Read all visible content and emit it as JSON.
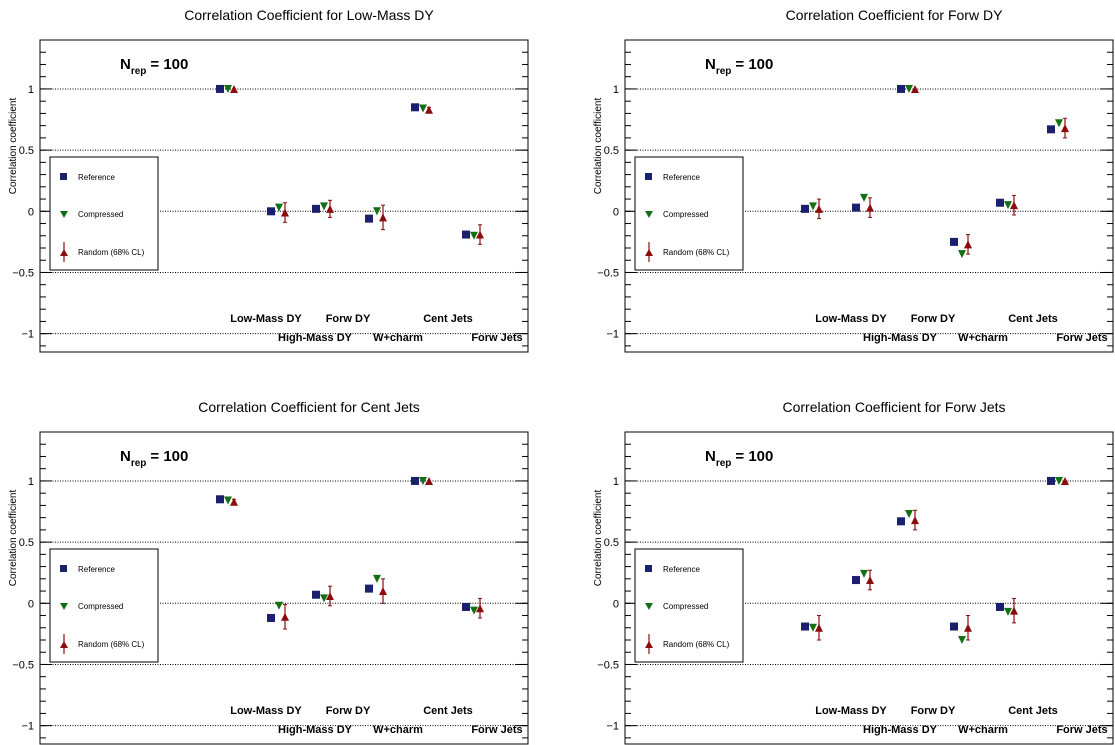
{
  "chart_data": [
    {
      "type": "scatter",
      "title": "Correlation Coefficient for Low-Mass DY",
      "ylabel": "Correlation coefficient",
      "annotation_main": "N",
      "annotation_sub": "rep",
      "annotation_value": "= 100",
      "categories": [
        "Low-Mass DY",
        "High-Mass DY",
        "Forw DY",
        "W+charm",
        "Cent Jets",
        "Forw Jets"
      ],
      "ylim": [
        -1.15,
        1.4
      ],
      "yticks": [
        -1,
        -0.5,
        0,
        0.5,
        1
      ],
      "ytick_labels": [
        "−1",
        "−0.5",
        "0",
        "0.5",
        "1"
      ],
      "legend": [
        "Reference",
        "Compressed",
        "Random (68% CL)"
      ],
      "series": [
        {
          "name": "Reference",
          "values": [
            1.0,
            0.0,
            0.02,
            -0.06,
            0.85,
            -0.19
          ]
        },
        {
          "name": "Compressed",
          "values": [
            1.0,
            0.03,
            0.04,
            0.0,
            0.84,
            -0.2
          ]
        },
        {
          "name": "Random (68% CL)",
          "values": [
            1.0,
            -0.01,
            0.02,
            -0.05,
            0.83,
            -0.19
          ],
          "err_low": [
            0.0,
            0.08,
            0.07,
            0.1,
            0.02,
            0.08
          ],
          "err_high": [
            0.0,
            0.08,
            0.07,
            0.1,
            0.02,
            0.08
          ]
        }
      ]
    },
    {
      "type": "scatter",
      "title": "Correlation Coefficient for Forw DY",
      "ylabel": "Correlation coefficient",
      "annotation_main": "N",
      "annotation_sub": "rep",
      "annotation_value": "= 100",
      "categories": [
        "Low-Mass DY",
        "High-Mass DY",
        "Forw DY",
        "W+charm",
        "Cent Jets",
        "Forw Jets"
      ],
      "ylim": [
        -1.15,
        1.4
      ],
      "yticks": [
        -1,
        -0.5,
        0,
        0.5,
        1
      ],
      "ytick_labels": [
        "−1",
        "−0.5",
        "0",
        "0.5",
        "1"
      ],
      "legend": [
        "Reference",
        "Compressed",
        "Random (68% CL)"
      ],
      "series": [
        {
          "name": "Reference",
          "values": [
            0.02,
            0.03,
            1.0,
            -0.25,
            0.07,
            0.67
          ]
        },
        {
          "name": "Compressed",
          "values": [
            0.04,
            0.11,
            1.0,
            -0.35,
            0.05,
            0.72
          ]
        },
        {
          "name": "Random (68% CL)",
          "values": [
            0.02,
            0.03,
            1.0,
            -0.27,
            0.05,
            0.68
          ],
          "err_low": [
            0.08,
            0.08,
            0.0,
            0.08,
            0.08,
            0.08
          ],
          "err_high": [
            0.08,
            0.08,
            0.0,
            0.08,
            0.08,
            0.08
          ]
        }
      ]
    },
    {
      "type": "scatter",
      "title": "Correlation Coefficient for Cent Jets",
      "ylabel": "Correlation coefficient",
      "annotation_main": "N",
      "annotation_sub": "rep",
      "annotation_value": "= 100",
      "categories": [
        "Low-Mass DY",
        "High-Mass DY",
        "Forw DY",
        "W+charm",
        "Cent Jets",
        "Forw Jets"
      ],
      "ylim": [
        -1.15,
        1.4
      ],
      "yticks": [
        -1,
        -0.5,
        0,
        0.5,
        1
      ],
      "ytick_labels": [
        "−1",
        "−0.5",
        "0",
        "0.5",
        "1"
      ],
      "legend": [
        "Reference",
        "Compressed",
        "Random (68% CL)"
      ],
      "series": [
        {
          "name": "Reference",
          "values": [
            0.85,
            -0.12,
            0.07,
            0.12,
            1.0,
            -0.03
          ]
        },
        {
          "name": "Compressed",
          "values": [
            0.84,
            -0.02,
            0.04,
            0.2,
            1.0,
            -0.06
          ]
        },
        {
          "name": "Random (68% CL)",
          "values": [
            0.83,
            -0.11,
            0.06,
            0.1,
            1.0,
            -0.04
          ],
          "err_low": [
            0.02,
            0.1,
            0.08,
            0.1,
            0.0,
            0.08
          ],
          "err_high": [
            0.02,
            0.1,
            0.08,
            0.1,
            0.0,
            0.08
          ]
        }
      ]
    },
    {
      "type": "scatter",
      "title": "Correlation Coefficient for Forw Jets",
      "ylabel": "Correlation coefficient",
      "annotation_main": "N",
      "annotation_sub": "rep",
      "annotation_value": "= 100",
      "categories": [
        "Low-Mass DY",
        "High-Mass DY",
        "Forw DY",
        "W+charm",
        "Cent Jets",
        "Forw Jets"
      ],
      "ylim": [
        -1.15,
        1.4
      ],
      "yticks": [
        -1,
        -0.5,
        0,
        0.5,
        1
      ],
      "ytick_labels": [
        "−1",
        "−0.5",
        "0",
        "0.5",
        "1"
      ],
      "legend": [
        "Reference",
        "Compressed",
        "Random (68% CL)"
      ],
      "series": [
        {
          "name": "Reference",
          "values": [
            -0.19,
            0.19,
            0.67,
            -0.19,
            -0.03,
            1.0
          ]
        },
        {
          "name": "Compressed",
          "values": [
            -0.2,
            0.24,
            0.73,
            -0.3,
            -0.07,
            1.0
          ]
        },
        {
          "name": "Random (68% CL)",
          "values": [
            -0.2,
            0.19,
            0.68,
            -0.2,
            -0.06,
            1.0
          ],
          "err_low": [
            0.1,
            0.08,
            0.08,
            0.1,
            0.1,
            0.0
          ],
          "err_high": [
            0.1,
            0.08,
            0.08,
            0.1,
            0.1,
            0.0
          ]
        }
      ]
    }
  ],
  "colors": {
    "reference": "#1a1f6e",
    "compressed": "#147014",
    "random": "#8b0c0c",
    "axis": "#000000",
    "gridline": "#000000"
  },
  "markers": {
    "reference": "square",
    "compressed": "triangle-down",
    "random": "triangle-up-with-error-bar"
  }
}
